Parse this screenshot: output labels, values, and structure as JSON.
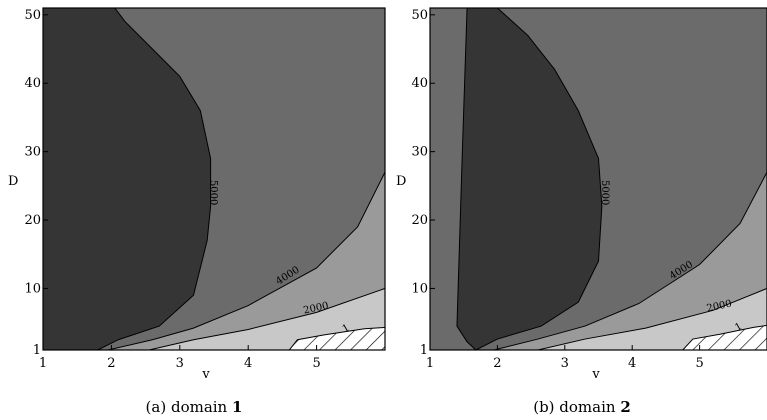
{
  "chart_data": [
    {
      "type": "contour",
      "caption_prefix": "(a) domain",
      "caption_bold": "1",
      "xlabel": "v",
      "ylabel": "D",
      "xlim": [
        1,
        6
      ],
      "ylim": [
        1,
        51
      ],
      "xticks": [
        "1",
        "2",
        "3",
        "4",
        "5"
      ],
      "yticks": [
        "1",
        "10",
        "20",
        "30",
        "40",
        "50"
      ],
      "contour_labels": [
        "5000",
        "4000",
        "2000",
        "1"
      ],
      "levels": [
        {
          "level": "1",
          "fill": "#ffffff",
          "hatched": true,
          "boundary": [
            [
              4.6,
              1
            ],
            [
              4.72,
              2.5
            ],
            [
              5.1,
              3.2
            ],
            [
              5.7,
              4.1
            ],
            [
              6,
              4.3
            ]
          ]
        },
        {
          "level": "2000",
          "fill": "#c8c8c8",
          "hatched": false,
          "boundary": [
            [
              2.55,
              1
            ],
            [
              3.2,
              2.5
            ],
            [
              4.0,
              4.0
            ],
            [
              5.0,
              6.5
            ],
            [
              6,
              10
            ]
          ]
        },
        {
          "level": "4000",
          "fill": "#9a9a9a",
          "hatched": false,
          "boundary": [
            [
              1.95,
              1
            ],
            [
              2.6,
              2.5
            ],
            [
              3.2,
              4.2
            ],
            [
              4.0,
              7.5
            ],
            [
              5.0,
              13
            ],
            [
              5.6,
              19
            ],
            [
              6,
              27
            ]
          ]
        },
        {
          "level": "5000",
          "fill": "#6b6b6b",
          "hatched": false,
          "boundary": [
            [
              1.8,
              1
            ],
            [
              2.1,
              2.5
            ],
            [
              2.7,
              4.5
            ],
            [
              3.2,
              9
            ],
            [
              3.4,
              17
            ],
            [
              3.45,
              22
            ],
            [
              3.45,
              29
            ],
            [
              3.3,
              36
            ],
            [
              3.0,
              41
            ],
            [
              2.6,
              45
            ],
            [
              2.2,
              49
            ],
            [
              2.05,
              51
            ]
          ]
        }
      ],
      "label_positions": [
        {
          "text": "5000",
          "x": 3.45,
          "y": 24,
          "rotate": 90
        },
        {
          "text": "4000",
          "x": 4.6,
          "y": 11.5,
          "rotate": -32
        },
        {
          "text": "2000",
          "x": 5.0,
          "y": 6.7,
          "rotate": -12
        },
        {
          "text": "1",
          "x": 5.45,
          "y": 3.8,
          "rotate": -30
        }
      ],
      "inner_fill": "#353535"
    },
    {
      "type": "contour",
      "caption_prefix": "(b) domain",
      "caption_bold": "2",
      "xlabel": "v",
      "ylabel": "D",
      "xlim": [
        1,
        6
      ],
      "ylim": [
        1,
        51
      ],
      "xticks": [
        "1",
        "2",
        "3",
        "4",
        "5"
      ],
      "yticks": [
        "1",
        "10",
        "20",
        "30",
        "40",
        "50"
      ],
      "contour_labels": [
        "5000",
        "4000",
        "2000",
        "1"
      ],
      "levels": [
        {
          "level": "1",
          "fill": "#ffffff",
          "hatched": true,
          "boundary": [
            [
              4.75,
              1
            ],
            [
              4.9,
              2.6
            ],
            [
              5.3,
              3.3
            ],
            [
              5.8,
              4.3
            ],
            [
              6,
              4.6
            ]
          ]
        },
        {
          "level": "2000",
          "fill": "#c8c8c8",
          "hatched": false,
          "boundary": [
            [
              2.6,
              1
            ],
            [
              3.3,
              2.6
            ],
            [
              4.2,
              4.2
            ],
            [
              5.2,
              6.8
            ],
            [
              6,
              10
            ]
          ]
        },
        {
          "level": "4000",
          "fill": "#9a9a9a",
          "hatched": false,
          "boundary": [
            [
              1.95,
              1
            ],
            [
              2.6,
              2.6
            ],
            [
              3.3,
              4.5
            ],
            [
              4.1,
              7.8
            ],
            [
              5.0,
              13.5
            ],
            [
              5.6,
              19.5
            ],
            [
              6,
              27
            ]
          ]
        }
      ],
      "outer_fill": "#6b6b6b",
      "outer_boundary": [
        [
          1.68,
          1
        ],
        [
          2.0,
          2.6
        ],
        [
          2.65,
          4.5
        ],
        [
          3.2,
          8
        ],
        [
          3.5,
          14
        ],
        [
          3.55,
          22
        ],
        [
          3.5,
          29
        ],
        [
          3.2,
          36
        ],
        [
          2.85,
          42
        ],
        [
          2.45,
          47
        ],
        [
          2.0,
          51
        ]
      ],
      "inner_left_boundary": [
        [
          1.55,
          51
        ],
        [
          1.48,
          30
        ],
        [
          1.4,
          4.5
        ],
        [
          1.55,
          2.2
        ],
        [
          1.68,
          1
        ]
      ],
      "label_positions": [
        {
          "text": "5000",
          "x": 3.55,
          "y": 24,
          "rotate": 90
        },
        {
          "text": "4000",
          "x": 4.75,
          "y": 12.3,
          "rotate": -32
        },
        {
          "text": "2000",
          "x": 5.3,
          "y": 7.0,
          "rotate": -12
        },
        {
          "text": "1",
          "x": 5.6,
          "y": 4.0,
          "rotate": -30
        }
      ],
      "inner_fill": "#353535"
    }
  ]
}
